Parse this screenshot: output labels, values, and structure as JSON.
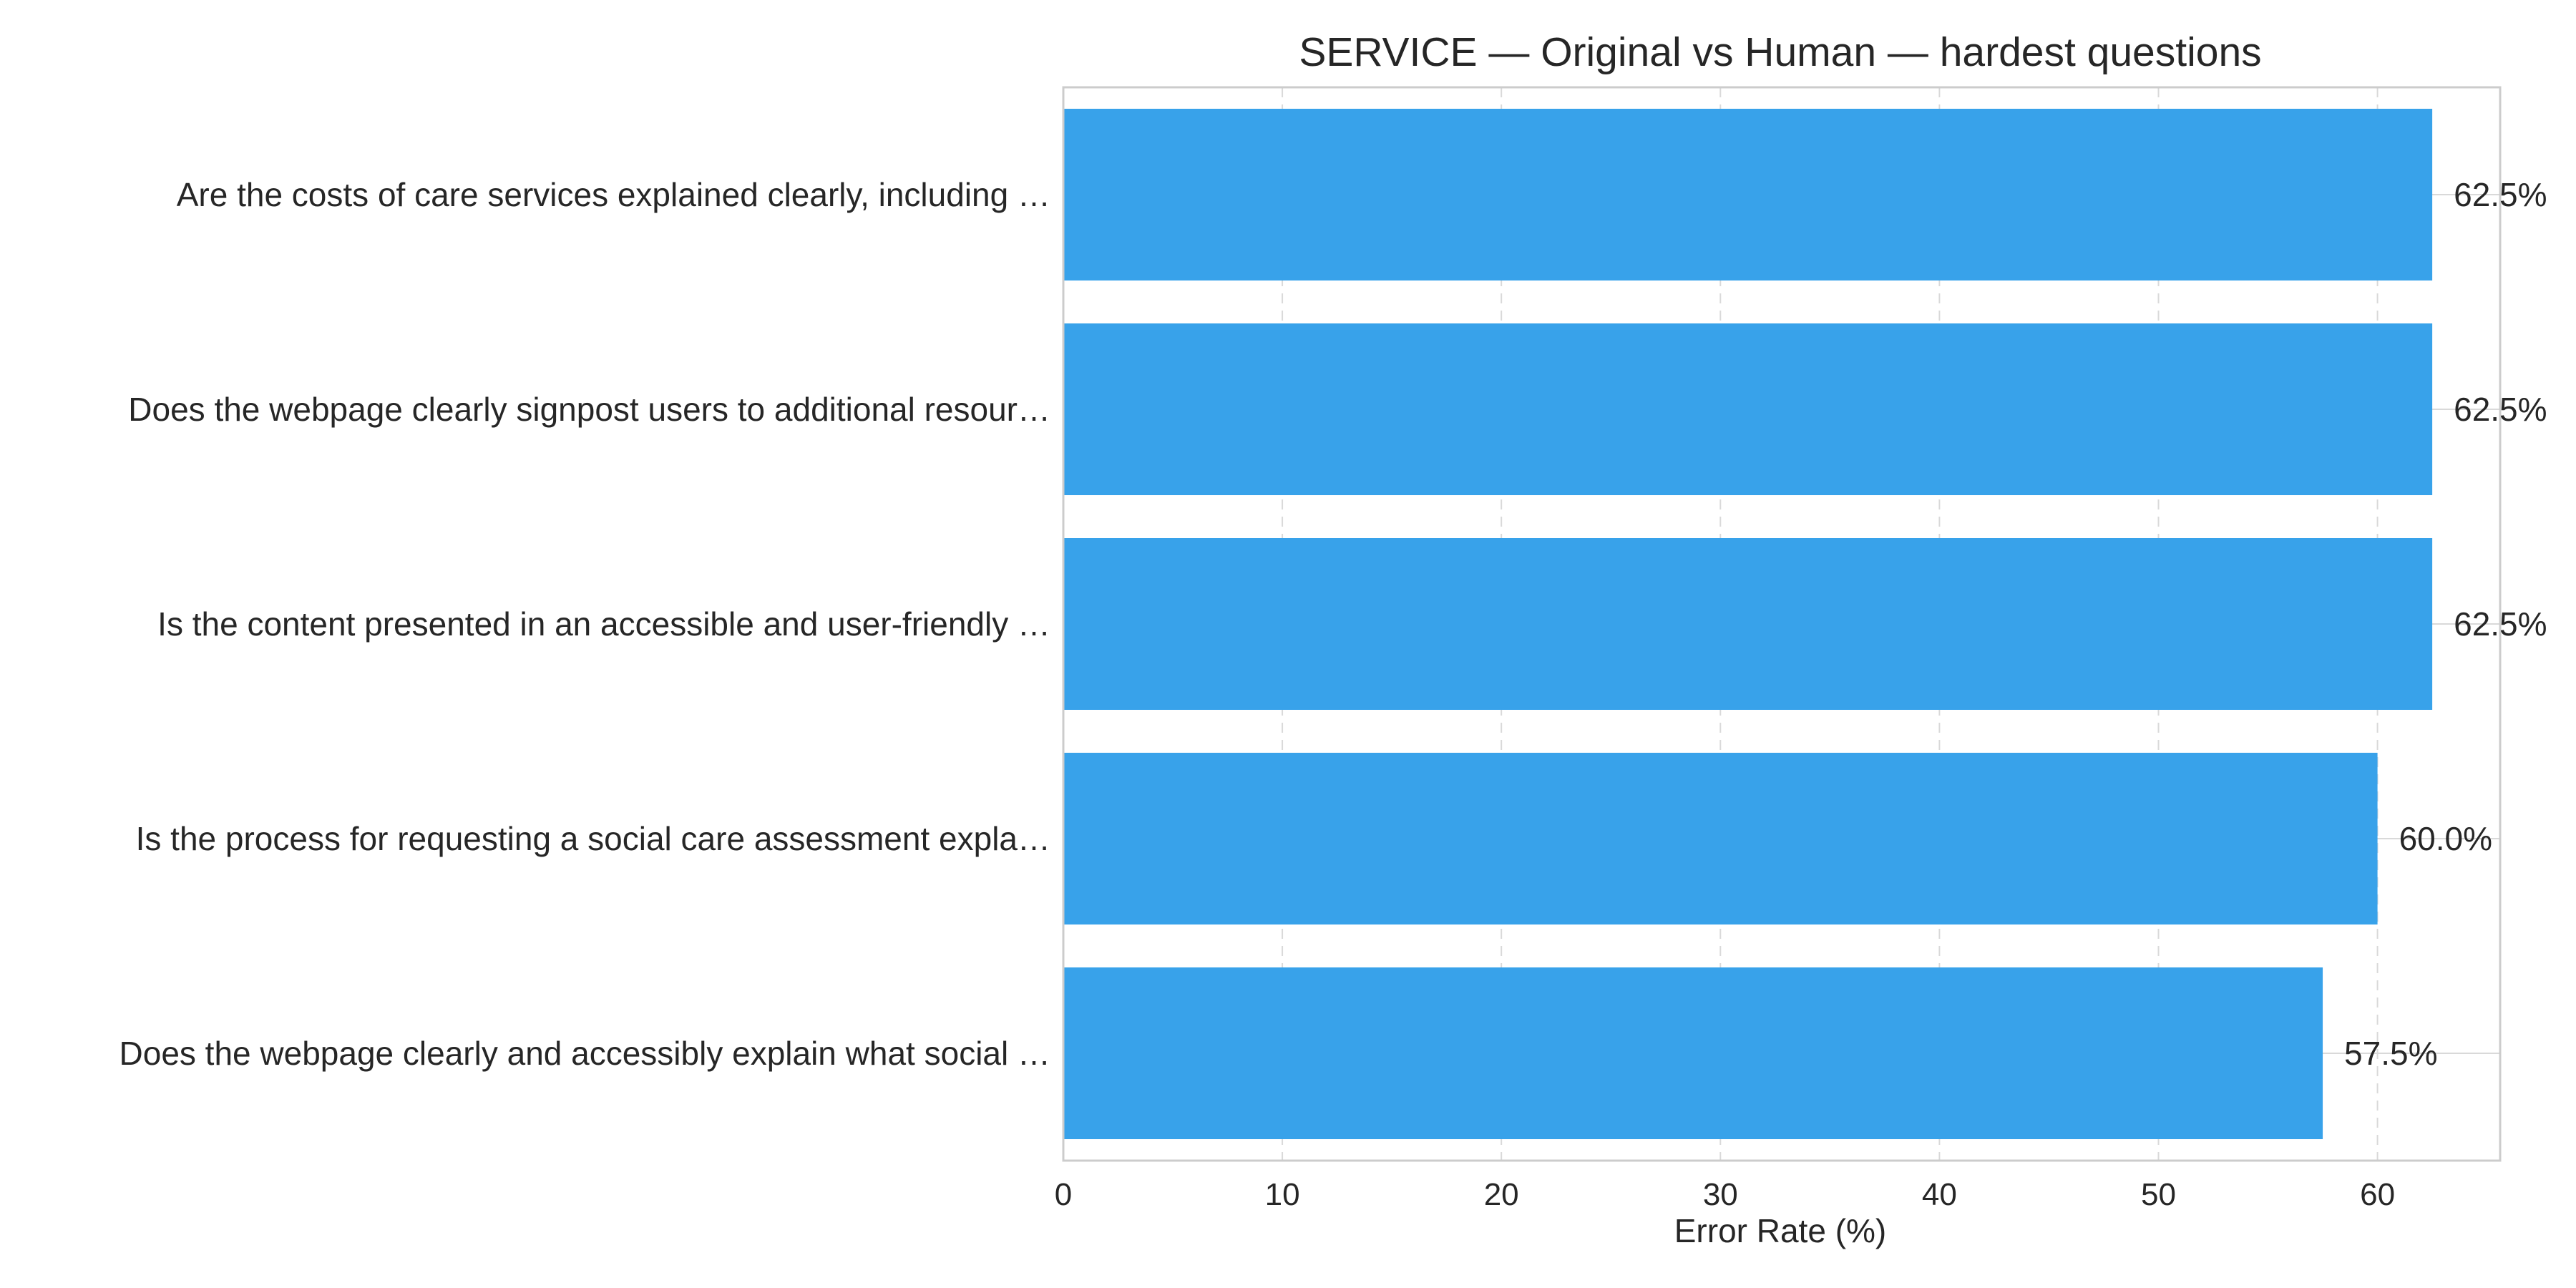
{
  "chart_data": {
    "type": "bar",
    "orientation": "horizontal",
    "title": "SERVICE — Original vs Human — hardest questions",
    "xlabel": "Error Rate (%)",
    "ylabel": "",
    "xlim": [
      0,
      65.6
    ],
    "xticks": [
      0,
      10,
      20,
      30,
      40,
      50,
      60
    ],
    "grid": "x",
    "bar_color": "#38a2ea",
    "categories": [
      "Are the costs of care services explained clearly, including …",
      "Does the webpage clearly signpost users to additional resour…",
      "Is the content presented in an accessible and user-friendly …",
      "Is the process for requesting a social care assessment expla…",
      "Does the webpage clearly and accessibly explain what social …"
    ],
    "values": [
      62.5,
      62.5,
      62.5,
      60.0,
      57.5
    ],
    "value_labels": [
      "62.5%",
      "62.5%",
      "62.5%",
      "60.0%",
      "57.5%"
    ]
  }
}
